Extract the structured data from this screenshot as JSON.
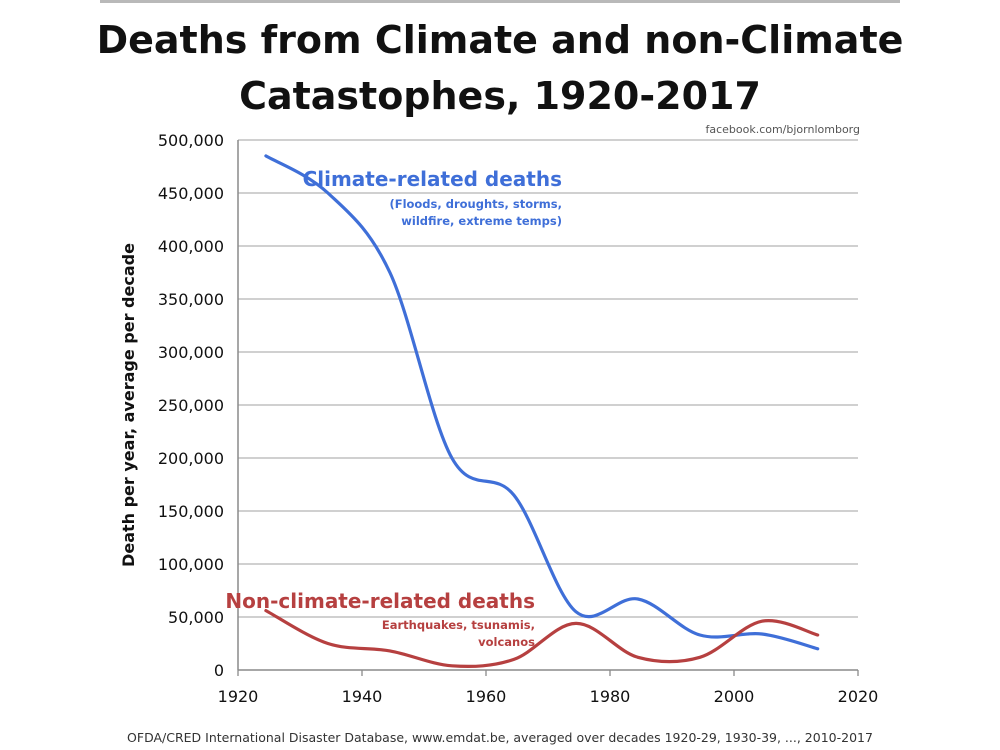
{
  "header": {
    "title_line1": "Deaths from Climate and non-Climate",
    "title_line2": "Catastophes, 1920-2017",
    "credit": "facebook.com/bjornlomborg"
  },
  "footer": {
    "source": "OFDA/CRED International Disaster Database, www.emdat.be, averaged over decades 1920-29, 1930-39, ..., 2010-2017"
  },
  "colors": {
    "climate": "#3f6fd8",
    "non_climate": "#b64040",
    "grid": "#b3b3b3"
  },
  "chart_data": {
    "type": "line",
    "title": "Deaths from Climate and non-Climate Catastophes, 1920-2017",
    "xlabel": "",
    "ylabel": "Death per year, average per decade",
    "xlim": [
      1920,
      2020
    ],
    "ylim": [
      0,
      500000
    ],
    "x_ticks": [
      1920,
      1940,
      1960,
      1980,
      2000,
      2020
    ],
    "y_ticks": [
      0,
      50000,
      100000,
      150000,
      200000,
      250000,
      300000,
      350000,
      400000,
      450000,
      500000
    ],
    "y_tick_labels": [
      "0",
      "50,000",
      "100,000",
      "150,000",
      "200,000",
      "250,000",
      "300,000",
      "350,000",
      "400,000",
      "450,000",
      "500,000"
    ],
    "grid": "horizontal",
    "legend": "none",
    "series": [
      {
        "name": "Climate-related deaths",
        "note": "(Floods, droughts, storms, wildfire, extreme temps)",
        "x": [
          1924.5,
          1934.5,
          1944.5,
          1954.5,
          1964.5,
          1974.5,
          1984.5,
          1994.5,
          2004.5,
          2013.5
        ],
        "y": [
          485000,
          450000,
          375000,
          200000,
          165000,
          55000,
          67000,
          33000,
          34000,
          20000
        ]
      },
      {
        "name": "Non-climate-related deaths",
        "note": "Earthquakes, tsunamis, volcanos",
        "x": [
          1924.5,
          1934.5,
          1944.5,
          1954.5,
          1964.5,
          1974.5,
          1984.5,
          1994.5,
          2004.5,
          2013.5
        ],
        "y": [
          56000,
          25000,
          18000,
          4000,
          10000,
          44000,
          12000,
          12000,
          46000,
          33000
        ]
      }
    ]
  }
}
